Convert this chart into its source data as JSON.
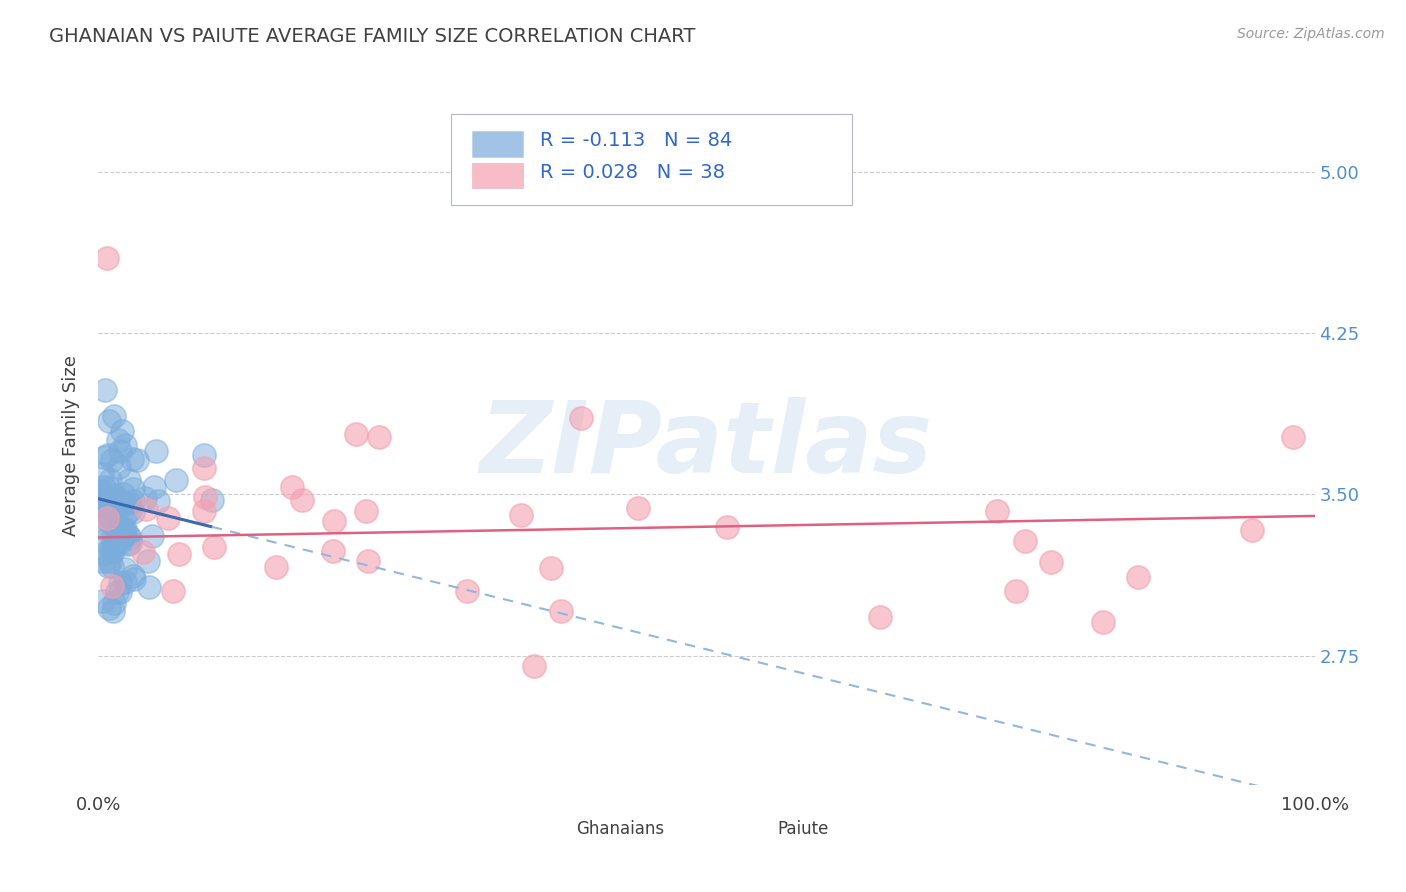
{
  "title": "GHANAIAN VS PAIUTE AVERAGE FAMILY SIZE CORRELATION CHART",
  "source_text": "Source: ZipAtlas.com",
  "ylabel": "Average Family Size",
  "xlim": [
    0.0,
    1.0
  ],
  "ylim": [
    2.15,
    5.3
  ],
  "yticks": [
    2.75,
    3.5,
    4.25,
    5.0
  ],
  "xticklabels": [
    "0.0%",
    "100.0%"
  ],
  "yticklabels": [
    "2.75",
    "3.50",
    "4.25",
    "5.00"
  ],
  "ghanaian_color": "#7aacdc",
  "ghanaian_edge_color": "#5590cc",
  "paiute_color": "#f4a0b0",
  "paiute_edge_color": "#e080a0",
  "ghanaian_R": -0.113,
  "ghanaian_N": 84,
  "paiute_R": 0.028,
  "paiute_N": 38,
  "legend_text_color": "#3366cc",
  "watermark_text": "ZIPatlas",
  "background_color": "#ffffff",
  "grid_color": "#cccccc",
  "title_color": "#404040",
  "right_ytick_color": "#5090d0",
  "blue_line_color": "#3a6ab0",
  "blue_dash_color": "#90b8dc",
  "pink_line_color": "#e06080",
  "ghanaian_seed": 123,
  "paiute_seed": 456
}
